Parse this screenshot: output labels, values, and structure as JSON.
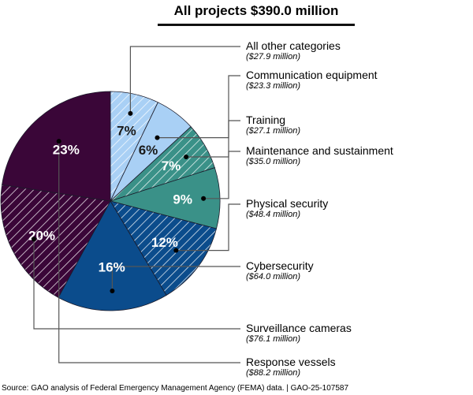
{
  "title": "All projects $390.0 million",
  "source": "Source: GAO analysis of Federal Emergency Management Agency (FEMA) data.  |  GAO-25-107587",
  "chart_data": {
    "type": "pie",
    "title": "All projects $390.0 million",
    "total_millions": 390.0,
    "start": "12 o'clock, clockwise",
    "slices": [
      {
        "name": "All other categories",
        "value": 27.9,
        "percent": 7,
        "label": "7%",
        "amount": "($27.9 million)",
        "color": "#a9d0f5",
        "hatch": true,
        "text_color": "#1a1a1a"
      },
      {
        "name": "Communication equipment",
        "value": 23.3,
        "percent": 6,
        "label": "6%",
        "amount": "($23.3 million)",
        "color": "#a9d0f5",
        "hatch": false,
        "text_color": "#1a1a1a"
      },
      {
        "name": "Training",
        "value": 27.1,
        "percent": 7,
        "label": "7%",
        "amount": "($27.1 million)",
        "color": "#3a9188",
        "hatch": true,
        "text_color": "#ffffff"
      },
      {
        "name": "Maintenance and sustainment",
        "value": 35.0,
        "percent": 9,
        "label": "9%",
        "amount": "($35.0 million)",
        "color": "#3a9188",
        "hatch": false,
        "text_color": "#ffffff"
      },
      {
        "name": "Physical security",
        "value": 48.4,
        "percent": 12,
        "label": "12%",
        "amount": "($48.4 million)",
        "color": "#0b4c8c",
        "hatch": true,
        "text_color": "#ffffff"
      },
      {
        "name": "Cybersecurity",
        "value": 64.0,
        "percent": 16,
        "label": "16%",
        "amount": "($64.0 million)",
        "color": "#0b4c8c",
        "hatch": false,
        "text_color": "#ffffff"
      },
      {
        "name": "Surveillance cameras",
        "value": 76.1,
        "percent": 20,
        "label": "20%",
        "amount": "($76.1 million)",
        "color": "#3a0638",
        "hatch": true,
        "text_color": "#ffffff"
      },
      {
        "name": "Response vessels",
        "value": 88.2,
        "percent": 23,
        "label": "23%",
        "amount": "($88.2 million)",
        "color": "#3a0638",
        "hatch": false,
        "text_color": "#ffffff"
      }
    ]
  }
}
